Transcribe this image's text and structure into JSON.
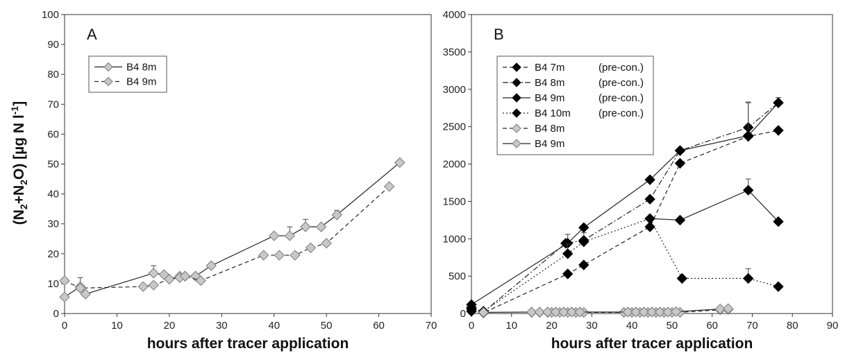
{
  "ylabel": "(N2+N2O) [µg N l-1]",
  "chart_data": [
    {
      "type": "line",
      "panel_label": "A",
      "xlabel": "hours after tracer application",
      "ylabel": "(N2+N2O) [µg N l-1]",
      "xlim": [
        0,
        70
      ],
      "ylim": [
        0,
        100
      ],
      "xticks": [
        0,
        10,
        20,
        30,
        40,
        50,
        60,
        70
      ],
      "yticks": [
        0,
        10,
        20,
        30,
        40,
        50,
        60,
        70,
        80,
        90,
        100
      ],
      "grid": false,
      "legend": "top-left",
      "series": [
        {
          "name": "B4 8m",
          "style": "solid",
          "marker_fill": "#c8c8c8",
          "points": [
            [
              0,
              5.5
            ],
            [
              3,
              9
            ],
            [
              4,
              6.5
            ],
            [
              17,
              13.5
            ],
            [
              19,
              13
            ],
            [
              20,
              11.5
            ],
            [
              22,
              12.5
            ],
            [
              23,
              12.5
            ],
            [
              25,
              12.5
            ],
            [
              28,
              16
            ],
            [
              40,
              26
            ],
            [
              43,
              26
            ],
            [
              46,
              29
            ],
            [
              49,
              29
            ],
            [
              52,
              33
            ],
            [
              64,
              50.5
            ]
          ],
          "error": [
            [
              3,
              3
            ],
            [
              17,
              2.5
            ],
            [
              43,
              3
            ],
            [
              46,
              2.5
            ],
            [
              52,
              1.5
            ]
          ]
        },
        {
          "name": "B4 9m",
          "style": "dashed",
          "marker_fill": "#c8c8c8",
          "points": [
            [
              0,
              11
            ],
            [
              3,
              8.5
            ],
            [
              15,
              9
            ],
            [
              17,
              9.5
            ],
            [
              20,
              11.5
            ],
            [
              22,
              12
            ],
            [
              23,
              12.5
            ],
            [
              26,
              11
            ],
            [
              38,
              19.5
            ],
            [
              41,
              19.5
            ],
            [
              44,
              19.5
            ],
            [
              47,
              22
            ],
            [
              50,
              23.5
            ],
            [
              62,
              42.5
            ]
          ],
          "error": []
        }
      ]
    },
    {
      "type": "line",
      "panel_label": "B",
      "xlabel": "hours after tracer application",
      "xlim": [
        0,
        90
      ],
      "ylim": [
        0,
        4000
      ],
      "xticks": [
        0,
        10,
        20,
        30,
        40,
        50,
        60,
        70,
        80,
        90
      ],
      "yticks": [
        0,
        500,
        1000,
        1500,
        2000,
        2500,
        3000,
        3500,
        4000
      ],
      "grid": false,
      "legend": "top-left",
      "series": [
        {
          "name": "B4 7m",
          "suffix": "(pre-con.)",
          "style": "dashed",
          "marker_fill": "#000000",
          "points": [
            [
              0,
              30
            ],
            [
              3,
              10
            ],
            [
              24,
              530
            ],
            [
              28,
              650
            ],
            [
              44.5,
              1160
            ],
            [
              52,
              2010
            ],
            [
              69,
              2370
            ],
            [
              76.5,
              2450
            ]
          ],
          "error": []
        },
        {
          "name": "B4 8m",
          "suffix": "(pre-con.)",
          "style": "dashdot",
          "marker_fill": "#000000",
          "points": [
            [
              0,
              80
            ],
            [
              3,
              20
            ],
            [
              23.5,
              940
            ],
            [
              28,
              980
            ],
            [
              44.5,
              1530
            ],
            [
              52,
              2180
            ],
            [
              69,
              2490
            ],
            [
              76.5,
              2820
            ]
          ],
          "error": [
            [
              69,
              330
            ],
            [
              76.5,
              70
            ]
          ]
        },
        {
          "name": "B4 9m",
          "suffix": "(pre-con.)",
          "style": "solid",
          "marker_fill": "#000000",
          "points": [
            [
              0,
              120
            ],
            [
              24,
              940
            ],
            [
              28,
              1150
            ],
            [
              44.5,
              1790
            ],
            [
              52,
              2180
            ],
            [
              69,
              2380
            ],
            [
              76.5,
              2820
            ]
          ],
          "error": [
            [
              24,
              120
            ],
            [
              69,
              450
            ]
          ]
        },
        {
          "name": "B4 10m",
          "suffix": "(pre-con.)",
          "style": "dotted",
          "marker_fill": "#000000",
          "points": [
            [
              0,
              60
            ],
            [
              3,
              30
            ],
            [
              24,
              800
            ],
            [
              28,
              960
            ],
            [
              44.5,
              1270
            ],
            [
              52.5,
              470
            ],
            [
              69,
              470
            ],
            [
              76.5,
              360
            ]
          ],
          "error": [
            [
              69,
              130
            ],
            [
              28,
              120
            ],
            [
              24,
              130
            ]
          ]
        },
        {
          "name": "B4 8m",
          "suffix": "",
          "style": "dashed",
          "marker_fill": "#c8c8c8",
          "points": [
            [
              15,
              15
            ],
            [
              17,
              15
            ],
            [
              19,
              15
            ],
            [
              20,
              15
            ],
            [
              22,
              15
            ],
            [
              24,
              15
            ],
            [
              26,
              15
            ],
            [
              28,
              15
            ],
            [
              38,
              15
            ],
            [
              40,
              15
            ],
            [
              42,
              15
            ],
            [
              44,
              15
            ],
            [
              46,
              15
            ],
            [
              48,
              15
            ],
            [
              50,
              15
            ],
            [
              52,
              15
            ],
            [
              62,
              50
            ],
            [
              64,
              55
            ]
          ],
          "error": []
        },
        {
          "name": "B4 9m",
          "suffix": "",
          "style": "solid",
          "marker_fill": "#c8c8c8",
          "points": [
            [
              3,
              15
            ],
            [
              15,
              20
            ],
            [
              17,
              20
            ],
            [
              19,
              20
            ],
            [
              21,
              20
            ],
            [
              23,
              20
            ],
            [
              25,
              20
            ],
            [
              27,
              20
            ],
            [
              39,
              20
            ],
            [
              41,
              20
            ],
            [
              43,
              20
            ],
            [
              45,
              20
            ],
            [
              47,
              20
            ],
            [
              49,
              20
            ],
            [
              51,
              25
            ],
            [
              62,
              60
            ],
            [
              64,
              65
            ]
          ],
          "error": []
        }
      ]
    },
    {
      "type": "line",
      "note_series": "B4 8m pre-con. inner curve",
      "series": [
        {
          "name": "",
          "style": "solid",
          "marker_fill": "#000000",
          "points": [
            [
              44.5,
              1270
            ],
            [
              52,
              1250
            ],
            [
              69,
              1650
            ],
            [
              76.5,
              1230
            ]
          ],
          "error": [
            [
              69,
              150
            ]
          ]
        }
      ]
    }
  ]
}
